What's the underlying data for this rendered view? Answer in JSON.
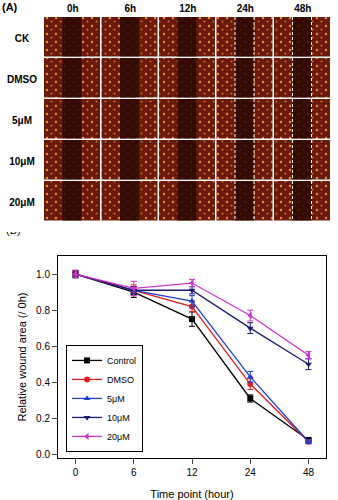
{
  "panel_a": {
    "label": "(A)",
    "columns": [
      "0h",
      "6h",
      "12h",
      "24h",
      "48h"
    ],
    "rows": [
      "CK",
      "DMSO",
      "5μM",
      "10μM",
      "20μM"
    ]
  },
  "chart_data": {
    "type": "line",
    "panel_label": "(B)",
    "x_label": "Time point (hour)",
    "y_label": "Relative wound area (/ 0h)",
    "categories": [
      "0",
      "6",
      "12",
      "24",
      "48"
    ],
    "ylim": [
      -0.02,
      1.1
    ],
    "yticks": [
      {
        "value": 0,
        "label": "0.0"
      },
      0.2,
      0.4,
      0.6,
      0.8,
      {
        "value": 1,
        "label": "1.0"
      }
    ],
    "legend": "lower left",
    "series": [
      {
        "name": "Control",
        "color": "#000000",
        "marker": "square",
        "values": [
          1.0,
          0.9,
          0.75,
          0.31,
          0.08
        ],
        "errors": [
          0.02,
          0.03,
          0.04,
          0.02,
          0.01
        ]
      },
      {
        "name": "DMSO",
        "color": "#e02020",
        "marker": "circle",
        "values": [
          1.0,
          0.91,
          0.82,
          0.39,
          0.07
        ],
        "errors": [
          0.02,
          0.03,
          0.03,
          0.03,
          0.01
        ]
      },
      {
        "name": "5μM",
        "color": "#1f3fd0",
        "marker": "triangle-up",
        "values": [
          1.0,
          0.91,
          0.85,
          0.43,
          0.07
        ],
        "errors": [
          0.02,
          0.02,
          0.03,
          0.03,
          0.01
        ]
      },
      {
        "name": "10μM",
        "color": "#1a1a6e",
        "marker": "triangle-down",
        "values": [
          1.0,
          0.91,
          0.91,
          0.7,
          0.5
        ],
        "errors": [
          0.02,
          0.02,
          0.02,
          0.03,
          0.03
        ]
      },
      {
        "name": "20μM",
        "color": "#cc33cc",
        "marker": "triangle-left",
        "values": [
          1.0,
          0.92,
          0.95,
          0.77,
          0.55
        ],
        "errors": [
          0.02,
          0.04,
          0.02,
          0.03,
          0.02
        ]
      }
    ]
  }
}
